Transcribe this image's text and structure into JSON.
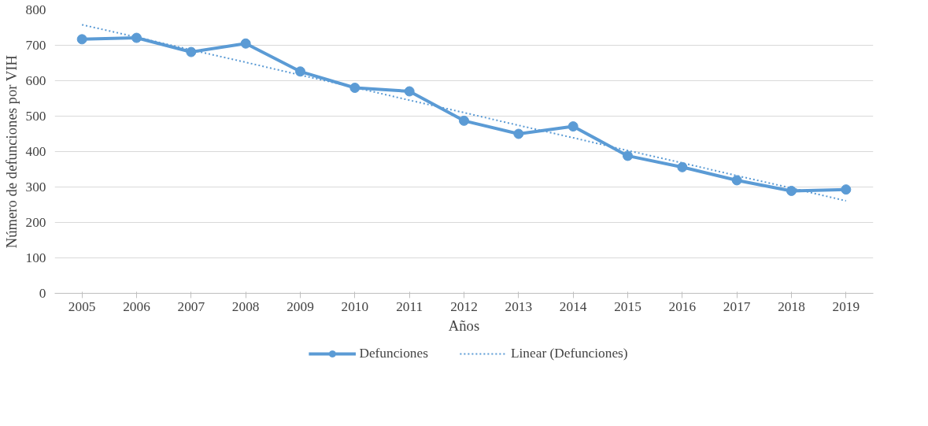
{
  "chart_data": {
    "type": "line",
    "xlabel": "Años",
    "ylabel": "Número de defunciones por VIH",
    "categories": [
      "2005",
      "2006",
      "2007",
      "2008",
      "2009",
      "2010",
      "2011",
      "2012",
      "2013",
      "2014",
      "2015",
      "2016",
      "2017",
      "2018",
      "2019"
    ],
    "series": [
      {
        "name": "Defunciones",
        "color": "#5b9bd5",
        "marker": "circle",
        "line_style": "solid",
        "values": [
          717,
          721,
          681,
          705,
          626,
          580,
          570,
          487,
          450,
          471,
          388,
          356,
          319,
          289,
          293
        ]
      },
      {
        "name": "Linear (Defunciones)",
        "type": "line",
        "color": "#5b9bd5",
        "marker": "none",
        "line_style": "dotted",
        "values": [
          758,
          723,
          687,
          652,
          616,
          581,
          545,
          510,
          474,
          439,
          403,
          368,
          332,
          297,
          261
        ]
      }
    ],
    "ylim": [
      0,
      800
    ],
    "yticks": [
      0,
      100,
      200,
      300,
      400,
      500,
      600,
      700,
      800
    ],
    "grid": "y",
    "legend": "bottom"
  }
}
